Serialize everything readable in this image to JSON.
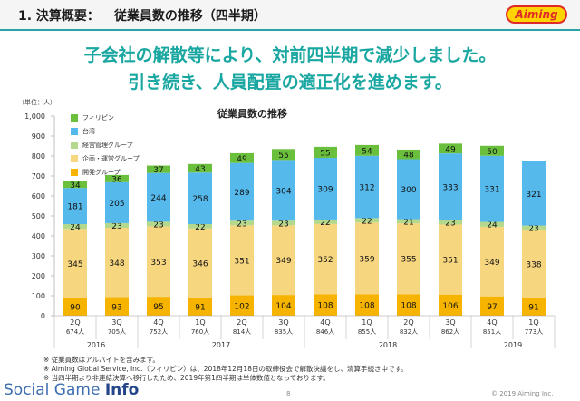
{
  "header": {
    "section": "1. 決算概要：",
    "title": "従業員数の推移（四半期）",
    "logo_text": "Aiming"
  },
  "headline": {
    "line1": "子会社の解散等により、対前四半期で減少しました。",
    "line2": "引き続き、人員配置の適正化を進めます。"
  },
  "colors": {
    "accent": "#2aa3a8",
    "headline": "#1aa7a1",
    "philippines": "#6abf3c",
    "taiwan": "#56b9ec",
    "management": "#b4d88c",
    "planning": "#f7d680",
    "development": "#f6b400"
  },
  "footer": {
    "notes": [
      "※ 従業員数はアルバイトを含みます。",
      "※ Aiming Global Service, Inc.（フィリピン）は、2018年12月18日の取締役会で解散決議をし、清算手続き中です。",
      "※ 当四半期より非連結決算へ移行したため、2019年第1四半期は単体数値となっております。"
    ],
    "brand_a": "Social Game ",
    "brand_b": "Info",
    "page": "8",
    "copyright": "© 2019 Aiming Inc."
  },
  "chart_data": {
    "type": "bar",
    "stacked": true,
    "title": "従業員数の推移",
    "unit_label": "（単位：人）",
    "ylim": [
      0,
      1000
    ],
    "yticks": [
      "0",
      "100",
      "200",
      "300",
      "400",
      "500",
      "600",
      "700",
      "800",
      "900",
      "1,000"
    ],
    "categories": [
      "2Q",
      "3Q",
      "4Q",
      "1Q",
      "2Q",
      "3Q",
      "4Q",
      "1Q",
      "2Q",
      "3Q",
      "4Q",
      "1Q"
    ],
    "totals": [
      "674人",
      "705人",
      "752人",
      "760人",
      "814人",
      "835人",
      "846人",
      "855人",
      "832人",
      "862人",
      "851人",
      "773人"
    ],
    "years": [
      {
        "label": "2016",
        "span": [
          0,
          1
        ]
      },
      {
        "label": "2017",
        "span": [
          2,
          5
        ]
      },
      {
        "label": "2018",
        "span": [
          6,
          9
        ]
      },
      {
        "label": "2019",
        "span": [
          10,
          11
        ]
      }
    ],
    "legend_position": "top-left",
    "series": [
      {
        "name": "開発グループ",
        "color": "#f6b400",
        "values": [
          90,
          93,
          95,
          91,
          102,
          104,
          108,
          108,
          108,
          106,
          97,
          91
        ]
      },
      {
        "name": "企画・運営グループ",
        "color": "#f7d680",
        "values": [
          345,
          348,
          353,
          346,
          351,
          349,
          352,
          359,
          355,
          351,
          349,
          338
        ]
      },
      {
        "name": "経営管理グループ",
        "color": "#b4d88c",
        "values": [
          24,
          23,
          23,
          22,
          23,
          23,
          22,
          22,
          21,
          23,
          24,
          23
        ]
      },
      {
        "name": "台湾",
        "color": "#56b9ec",
        "values": [
          181,
          205,
          244,
          258,
          289,
          304,
          309,
          312,
          300,
          333,
          331,
          321
        ]
      },
      {
        "name": "フィリピン",
        "color": "#6abf3c",
        "values": [
          34,
          36,
          37,
          43,
          49,
          55,
          55,
          54,
          48,
          49,
          50,
          null
        ]
      }
    ]
  }
}
